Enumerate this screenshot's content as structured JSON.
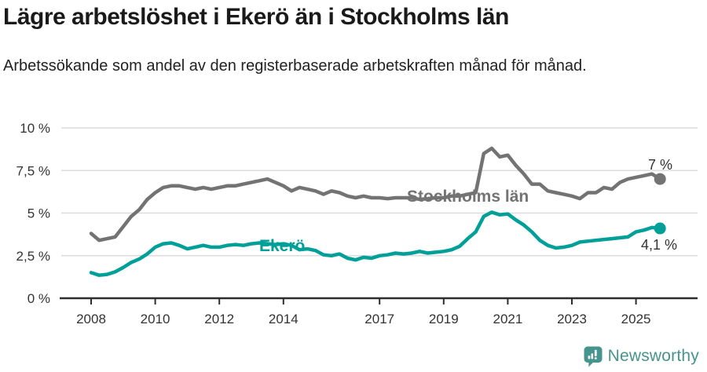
{
  "header": {
    "title": "Lägre arbetslöshet i Ekerö än i Stockholms län",
    "subtitle": "Arbetssökande som andel av den registerbaserade arbetskraften månad för månad."
  },
  "footer": {
    "brand": "Newsworthy"
  },
  "colors": {
    "title_text": "#1a1a1a",
    "body_text": "#222222",
    "axis_text": "#333333",
    "gridline": "#dcdcdc",
    "axis_line": "#2d2d2d",
    "stockholm_gray": "#737373",
    "ekero_teal": "#00a099",
    "brand_teal": "#46948e"
  },
  "chart_data": {
    "type": "line",
    "x_unit": "year (monthly series, quarterly estimates)",
    "grid": true,
    "ylim": [
      0,
      10
    ],
    "yticks": [
      {
        "value": 0,
        "label": "0 %"
      },
      {
        "value": 2.5,
        "label": "2,5 %"
      },
      {
        "value": 5,
        "label": "5 %"
      },
      {
        "value": 7.5,
        "label": "7,5 %"
      },
      {
        "value": 10,
        "label": "10 %"
      }
    ],
    "xticks": [
      {
        "value": 2008,
        "label": "2008"
      },
      {
        "value": 2010,
        "label": "2010"
      },
      {
        "value": 2012,
        "label": "2012"
      },
      {
        "value": 2014,
        "label": "2014"
      },
      {
        "value": 2017,
        "label": "2017"
      },
      {
        "value": 2019,
        "label": "2019"
      },
      {
        "value": 2021,
        "label": "2021"
      },
      {
        "value": 2023,
        "label": "2023"
      },
      {
        "value": 2025,
        "label": "2025"
      }
    ],
    "x": [
      2008,
      2008.25,
      2008.5,
      2008.75,
      2009,
      2009.25,
      2009.5,
      2009.75,
      2010,
      2010.25,
      2010.5,
      2010.75,
      2011,
      2011.25,
      2011.5,
      2011.75,
      2012,
      2012.25,
      2012.5,
      2012.75,
      2013,
      2013.25,
      2013.5,
      2013.75,
      2014,
      2014.25,
      2014.5,
      2014.75,
      2015,
      2015.25,
      2015.5,
      2015.75,
      2016,
      2016.25,
      2016.5,
      2016.75,
      2017,
      2017.25,
      2017.5,
      2017.75,
      2018,
      2018.25,
      2018.5,
      2018.75,
      2019,
      2019.25,
      2019.5,
      2019.75,
      2020,
      2020.25,
      2020.5,
      2020.75,
      2021,
      2021.25,
      2021.5,
      2021.75,
      2022,
      2022.25,
      2022.5,
      2022.75,
      2023,
      2023.25,
      2023.5,
      2023.75,
      2024,
      2024.25,
      2024.5,
      2024.75,
      2025,
      2025.25,
      2025.5,
      2025.75
    ],
    "series": [
      {
        "name": "Stockholms län",
        "color": "#737373",
        "end_label": "7 %",
        "end_value": 7.0,
        "values": [
          3.8,
          3.4,
          3.5,
          3.6,
          4.2,
          4.8,
          5.2,
          5.8,
          6.2,
          6.5,
          6.6,
          6.6,
          6.5,
          6.4,
          6.5,
          6.4,
          6.5,
          6.6,
          6.6,
          6.7,
          6.8,
          6.9,
          7.0,
          6.8,
          6.6,
          6.3,
          6.5,
          6.4,
          6.3,
          6.1,
          6.3,
          6.2,
          6.0,
          5.9,
          6.0,
          5.9,
          5.9,
          5.85,
          5.9,
          5.9,
          5.9,
          5.8,
          5.85,
          5.9,
          5.9,
          6.0,
          6.0,
          6.1,
          6.2,
          8.5,
          8.8,
          8.3,
          8.4,
          7.8,
          7.3,
          6.7,
          6.7,
          6.3,
          6.2,
          6.1,
          6.0,
          5.85,
          6.2,
          6.2,
          6.5,
          6.4,
          6.8,
          7.0,
          7.1,
          7.2,
          7.3,
          7.0
        ]
      },
      {
        "name": "Ekerö",
        "color": "#00a099",
        "end_label": "4,1 %",
        "end_value": 4.1,
        "values": [
          1.5,
          1.35,
          1.4,
          1.55,
          1.8,
          2.1,
          2.3,
          2.6,
          3.0,
          3.2,
          3.25,
          3.1,
          2.9,
          3.0,
          3.1,
          3.0,
          3.0,
          3.1,
          3.15,
          3.1,
          3.2,
          3.25,
          3.2,
          3.15,
          3.2,
          3.1,
          2.85,
          2.9,
          2.8,
          2.55,
          2.5,
          2.6,
          2.35,
          2.25,
          2.4,
          2.35,
          2.5,
          2.55,
          2.65,
          2.6,
          2.65,
          2.75,
          2.65,
          2.7,
          2.75,
          2.85,
          3.05,
          3.5,
          3.9,
          4.8,
          5.05,
          4.9,
          4.95,
          4.6,
          4.3,
          3.9,
          3.4,
          3.1,
          2.95,
          3.0,
          3.1,
          3.3,
          3.35,
          3.4,
          3.45,
          3.5,
          3.55,
          3.6,
          3.9,
          4.0,
          4.15,
          4.1
        ]
      }
    ]
  }
}
